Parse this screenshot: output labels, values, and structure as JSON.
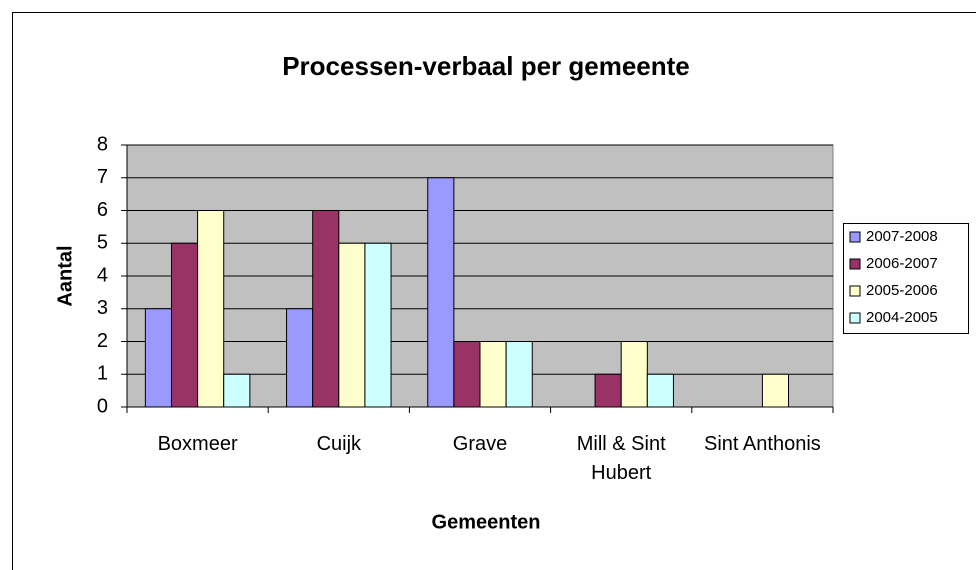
{
  "chart_data": {
    "type": "bar",
    "title": "Processen-verbaal  per gemeente",
    "x_label": "Gemeenten",
    "y_label": "Aantal",
    "categories": [
      "Boxmeer",
      "Cuijk",
      "Grave",
      "Mill & Sint Hubert",
      "Sint Anthonis"
    ],
    "series": [
      {
        "name": "2007-2008",
        "color": "#9999ff",
        "values": [
          3,
          3,
          7,
          0,
          0
        ]
      },
      {
        "name": "2006-2007",
        "color": "#993366",
        "values": [
          5,
          6,
          2,
          1,
          0
        ]
      },
      {
        "name": "2005-2006",
        "color": "#ffffcc",
        "values": [
          6,
          5,
          2,
          2,
          1
        ]
      },
      {
        "name": "2004-2005",
        "color": "#ccffff",
        "values": [
          1,
          5,
          2,
          1,
          0
        ]
      }
    ],
    "ylim": [
      0,
      8
    ],
    "yticks": [
      0,
      1,
      2,
      3,
      4,
      5,
      6,
      7,
      8
    ],
    "grid": true,
    "legend": "right"
  }
}
